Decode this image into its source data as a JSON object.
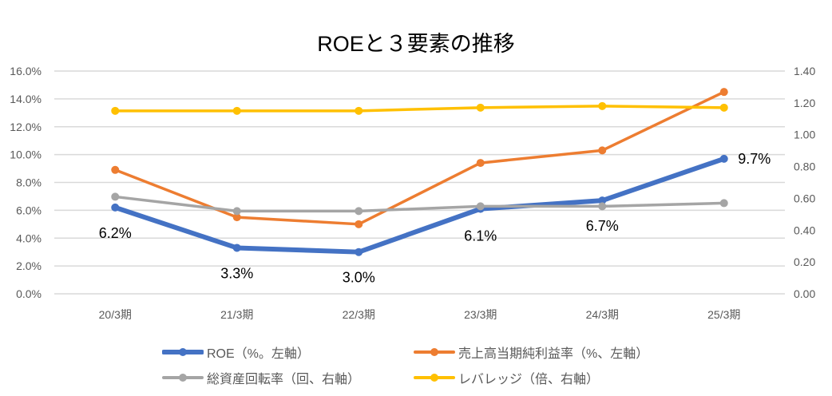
{
  "chart_data": {
    "type": "line",
    "title": "ROEと３要素の推移",
    "categories": [
      "20/3期",
      "21/3期",
      "22/3期",
      "23/3期",
      "24/3期",
      "25/3期"
    ],
    "left_axis": {
      "min": 0,
      "max": 16,
      "step": 2,
      "ticks": [
        "0.0%",
        "2.0%",
        "4.0%",
        "6.0%",
        "8.0%",
        "10.0%",
        "12.0%",
        "14.0%",
        "16.0%"
      ]
    },
    "right_axis": {
      "min": 0,
      "max": 1.4,
      "step": 0.2,
      "ticks": [
        "0.00",
        "0.20",
        "0.40",
        "0.60",
        "0.80",
        "1.00",
        "1.20",
        "1.40"
      ]
    },
    "grid": true,
    "legend_position": "bottom",
    "series": [
      {
        "name": "ROE（%。左軸）",
        "axis": "left",
        "color": "#4472C4",
        "width": 6,
        "values": [
          6.2,
          3.3,
          3.0,
          6.1,
          6.7,
          9.7
        ],
        "labels": [
          "6.2%",
          "3.3%",
          "3.0%",
          "6.1%",
          "6.7%",
          "9.7%"
        ]
      },
      {
        "name": "売上高当期純利益率（%、左軸）",
        "axis": "left",
        "color": "#ED7D31",
        "width": 3.5,
        "values": [
          8.9,
          5.5,
          5.0,
          9.4,
          10.3,
          14.5
        ]
      },
      {
        "name": "総資産回転率（回、右軸）",
        "axis": "right",
        "color": "#A5A5A5",
        "width": 3.5,
        "values": [
          0.61,
          0.52,
          0.52,
          0.55,
          0.55,
          0.57
        ]
      },
      {
        "name": "レバレッジ（倍、右軸）",
        "axis": "right",
        "color": "#FFC000",
        "width": 3.5,
        "values": [
          1.15,
          1.15,
          1.15,
          1.17,
          1.18,
          1.17
        ]
      }
    ]
  }
}
